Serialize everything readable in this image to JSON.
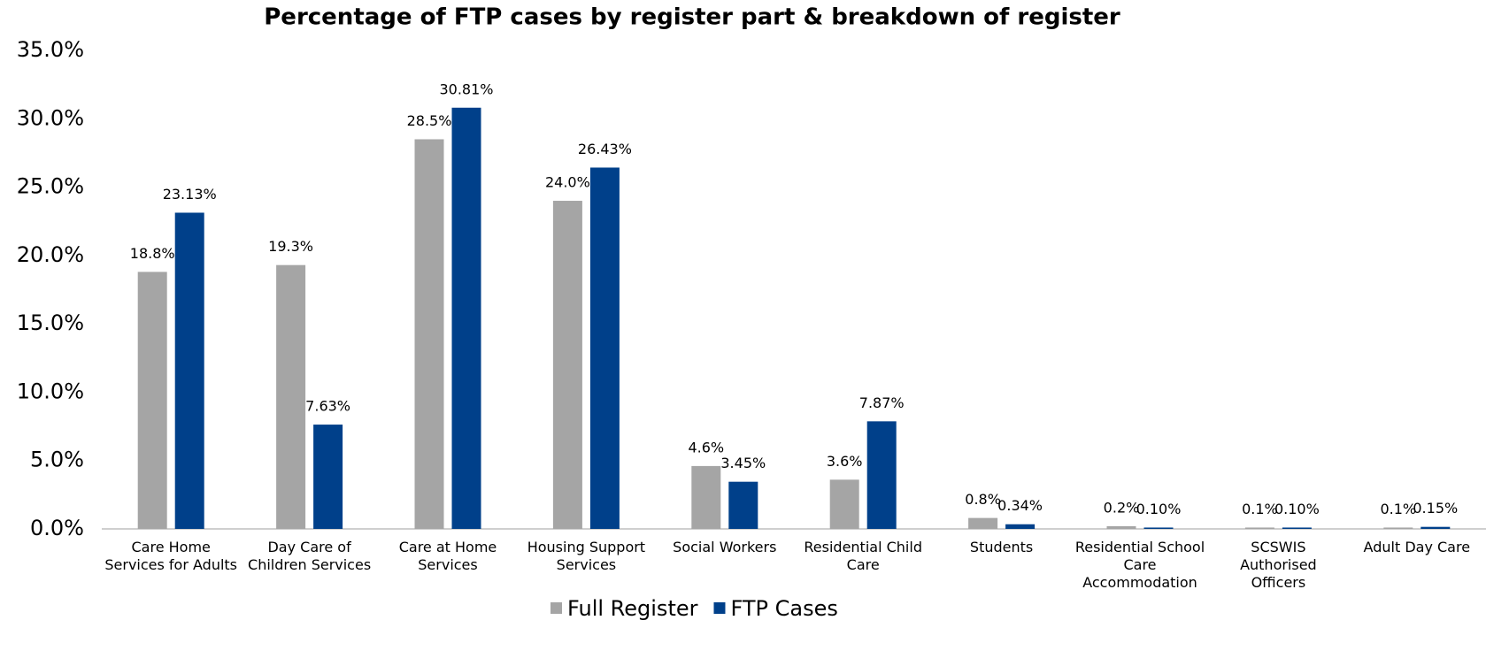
{
  "chart_data": {
    "type": "bar",
    "title": "Percentage of FTP cases by register part & breakdown of register",
    "categories": [
      "Care Home Services for Adults",
      "Day Care of Children Services",
      "Care at Home Services",
      "Housing Support Services",
      "Social Workers",
      "Residential Child Care",
      "Students",
      "Residential School Care Accommodation",
      "SCSWIS Authorised Officers",
      "Adult Day Care"
    ],
    "series": [
      {
        "name": "Full Register",
        "color": "#a5a5a5",
        "values": [
          18.8,
          19.3,
          28.5,
          24.0,
          4.6,
          3.6,
          0.8,
          0.2,
          0.1,
          0.1
        ],
        "value_labels": [
          "18.8%",
          "19.3%",
          "28.5%",
          "24.0%",
          "4.6%",
          "3.6%",
          "0.8%",
          "0.2%",
          "0.1%",
          "0.1%"
        ]
      },
      {
        "name": "FTP Cases",
        "color": "#00408a",
        "values": [
          23.13,
          7.63,
          30.81,
          26.43,
          3.45,
          7.87,
          0.34,
          0.1,
          0.1,
          0.15
        ],
        "value_labels": [
          "23.13%",
          "7.63%",
          "30.81%",
          "26.43%",
          "3.45%",
          "7.87%",
          "0.34%",
          "0.10%",
          "0.10%",
          "0.15%"
        ]
      }
    ],
    "ylim": [
      0,
      35
    ],
    "yticks": [
      {
        "value": 0,
        "label": "0.0%"
      },
      {
        "value": 5,
        "label": "5.0%"
      },
      {
        "value": 10,
        "label": "10.0%"
      },
      {
        "value": 15,
        "label": "15.0%"
      },
      {
        "value": 20,
        "label": "20.0%"
      },
      {
        "value": 25,
        "label": "25.0%"
      },
      {
        "value": 30,
        "label": "30.0%"
      },
      {
        "value": 35,
        "label": "35.0%"
      }
    ],
    "legend": "bottom"
  }
}
